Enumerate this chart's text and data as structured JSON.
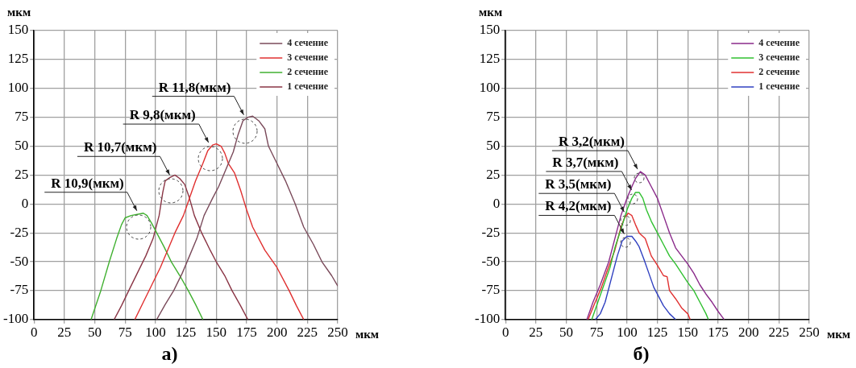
{
  "chart_data": [
    {
      "type": "line",
      "title": "а)",
      "xlabel": "мкм",
      "ylabel": "мкм",
      "xlim": [
        0,
        250
      ],
      "xticks": [
        0,
        25,
        50,
        75,
        100,
        125,
        150,
        175,
        200,
        225,
        250
      ],
      "ylim": [
        -100,
        150
      ],
      "yticks": [
        -100,
        -75,
        -50,
        -25,
        0,
        25,
        50,
        75,
        100,
        125,
        150
      ],
      "grid": true,
      "legend": "top right",
      "series": [
        {
          "name": "4 сечение",
          "color": "#7a4a5a",
          "x": [
            101,
            108,
            115,
            122,
            128,
            134,
            140,
            147,
            152,
            158,
            164,
            168,
            172,
            176,
            180,
            185,
            190,
            193,
            200,
            207,
            215,
            222,
            230,
            237,
            245,
            250
          ],
          "values": [
            -100,
            -87,
            -75,
            -60,
            -45,
            -30,
            -10,
            5,
            15,
            30,
            45,
            60,
            72,
            75,
            76,
            72,
            65,
            50,
            35,
            20,
            0,
            -20,
            -35,
            -50,
            -62,
            -71
          ]
        },
        {
          "name": "3 сечение",
          "color": "#e03030",
          "x": [
            83,
            90,
            97,
            104,
            110,
            116,
            123,
            128,
            133,
            139,
            143,
            147,
            150,
            154,
            157,
            160,
            165,
            170,
            175,
            180,
            190,
            200,
            210,
            216,
            222
          ],
          "values": [
            -100,
            -85,
            -70,
            -55,
            -40,
            -25,
            -10,
            5,
            20,
            35,
            46,
            51,
            52,
            50,
            44,
            35,
            27,
            12,
            -5,
            -20,
            -40,
            -55,
            -75,
            -88,
            -100
          ]
        },
        {
          "name": "2 сечение",
          "color": "#40b030",
          "x": [
            47,
            55,
            62,
            68,
            72,
            75,
            80,
            85,
            90,
            93,
            97,
            101,
            107,
            113,
            120,
            127,
            133,
            139
          ],
          "values": [
            -100,
            -75,
            -50,
            -30,
            -18,
            -12,
            -10,
            -9,
            -8,
            -10,
            -17,
            -25,
            -37,
            -50,
            -62,
            -75,
            -87,
            -100
          ]
        },
        {
          "name": "1 сечение",
          "color": "#8a3545",
          "x": [
            66,
            72,
            78,
            85,
            92,
            98,
            103,
            106,
            108,
            112,
            116,
            120,
            124,
            128,
            132,
            138,
            145,
            150,
            157,
            163,
            170,
            176
          ],
          "values": [
            -100,
            -88,
            -75,
            -60,
            -45,
            -30,
            -10,
            10,
            20,
            23,
            25,
            22,
            17,
            5,
            -10,
            -25,
            -40,
            -50,
            -62,
            -75,
            -88,
            -100
          ]
        }
      ],
      "annotations": [
        {
          "text": "R 10,9(мкм)",
          "x": 86,
          "y": -8
        },
        {
          "text": "R 10,7(мкм)",
          "x": 113,
          "y": 23
        },
        {
          "text": "R 9,8(мкм)",
          "x": 145,
          "y": 51
        },
        {
          "text": "R 11,8(мкм)",
          "x": 174,
          "y": 75
        }
      ]
    },
    {
      "type": "line",
      "title": "б)",
      "xlabel": "мкм",
      "ylabel": "мкм",
      "xlim": [
        0,
        250
      ],
      "xticks": [
        0,
        25,
        50,
        75,
        100,
        125,
        150,
        175,
        200,
        225,
        250
      ],
      "ylim": [
        -100,
        150
      ],
      "yticks": [
        -100,
        -75,
        -50,
        -25,
        0,
        25,
        50,
        75,
        100,
        125,
        150
      ],
      "grid": true,
      "legend": "top right",
      "series": [
        {
          "name": "4 сечение",
          "color": "#8a2a8a",
          "x": [
            67,
            72,
            78,
            85,
            90,
            95,
            100,
            104,
            107,
            111,
            115,
            120,
            125,
            130,
            135,
            140,
            145,
            150,
            155,
            160,
            165,
            170,
            175,
            180
          ],
          "values": [
            -100,
            -85,
            -70,
            -50,
            -30,
            -10,
            5,
            15,
            22,
            28,
            25,
            15,
            5,
            -10,
            -25,
            -38,
            -45,
            -52,
            -60,
            -70,
            -78,
            -85,
            -93,
            -100
          ]
        },
        {
          "name": "3 сечение",
          "color": "#30c030",
          "x": [
            71,
            76,
            81,
            86,
            90,
            95,
            100,
            104,
            107,
            110,
            113,
            116,
            120,
            125,
            130,
            135,
            140,
            145,
            150,
            155,
            160,
            165,
            167
          ],
          "values": [
            -100,
            -85,
            -70,
            -55,
            -38,
            -22,
            -5,
            5,
            10,
            10,
            5,
            -5,
            -15,
            -25,
            -35,
            -45,
            -52,
            -60,
            -68,
            -75,
            -85,
            -95,
            -100
          ]
        },
        {
          "name": "2 сечение",
          "color": "#e03030",
          "x": [
            68,
            73,
            79,
            84,
            90,
            95,
            98,
            101,
            104,
            107,
            110,
            115,
            120,
            125,
            130,
            133,
            135,
            140,
            145,
            150,
            152
          ],
          "values": [
            -100,
            -87,
            -72,
            -57,
            -40,
            -20,
            -12,
            -8,
            -10,
            -18,
            -25,
            -30,
            -45,
            -53,
            -62,
            -63,
            -75,
            -82,
            -90,
            -95,
            -100
          ]
        },
        {
          "name": "1 сечение",
          "color": "#3040c0",
          "x": [
            74,
            78,
            82,
            87,
            92,
            96,
            100,
            104,
            107,
            110,
            114,
            118,
            122,
            126,
            130,
            135,
            140
          ],
          "values": [
            -100,
            -95,
            -85,
            -65,
            -45,
            -32,
            -28,
            -28,
            -32,
            -37,
            -48,
            -60,
            -72,
            -80,
            -88,
            -95,
            -100
          ]
        }
      ],
      "annotations": [
        {
          "text": "R 3,2(мкм)",
          "x": 110,
          "y": 28
        },
        {
          "text": "R 3,7(мкм)",
          "x": 105,
          "y": 10
        },
        {
          "text": "R 3,5(мкм)",
          "x": 99,
          "y": -9
        },
        {
          "text": "R 4,2(мкм)",
          "x": 99,
          "y": -28
        }
      ]
    }
  ]
}
